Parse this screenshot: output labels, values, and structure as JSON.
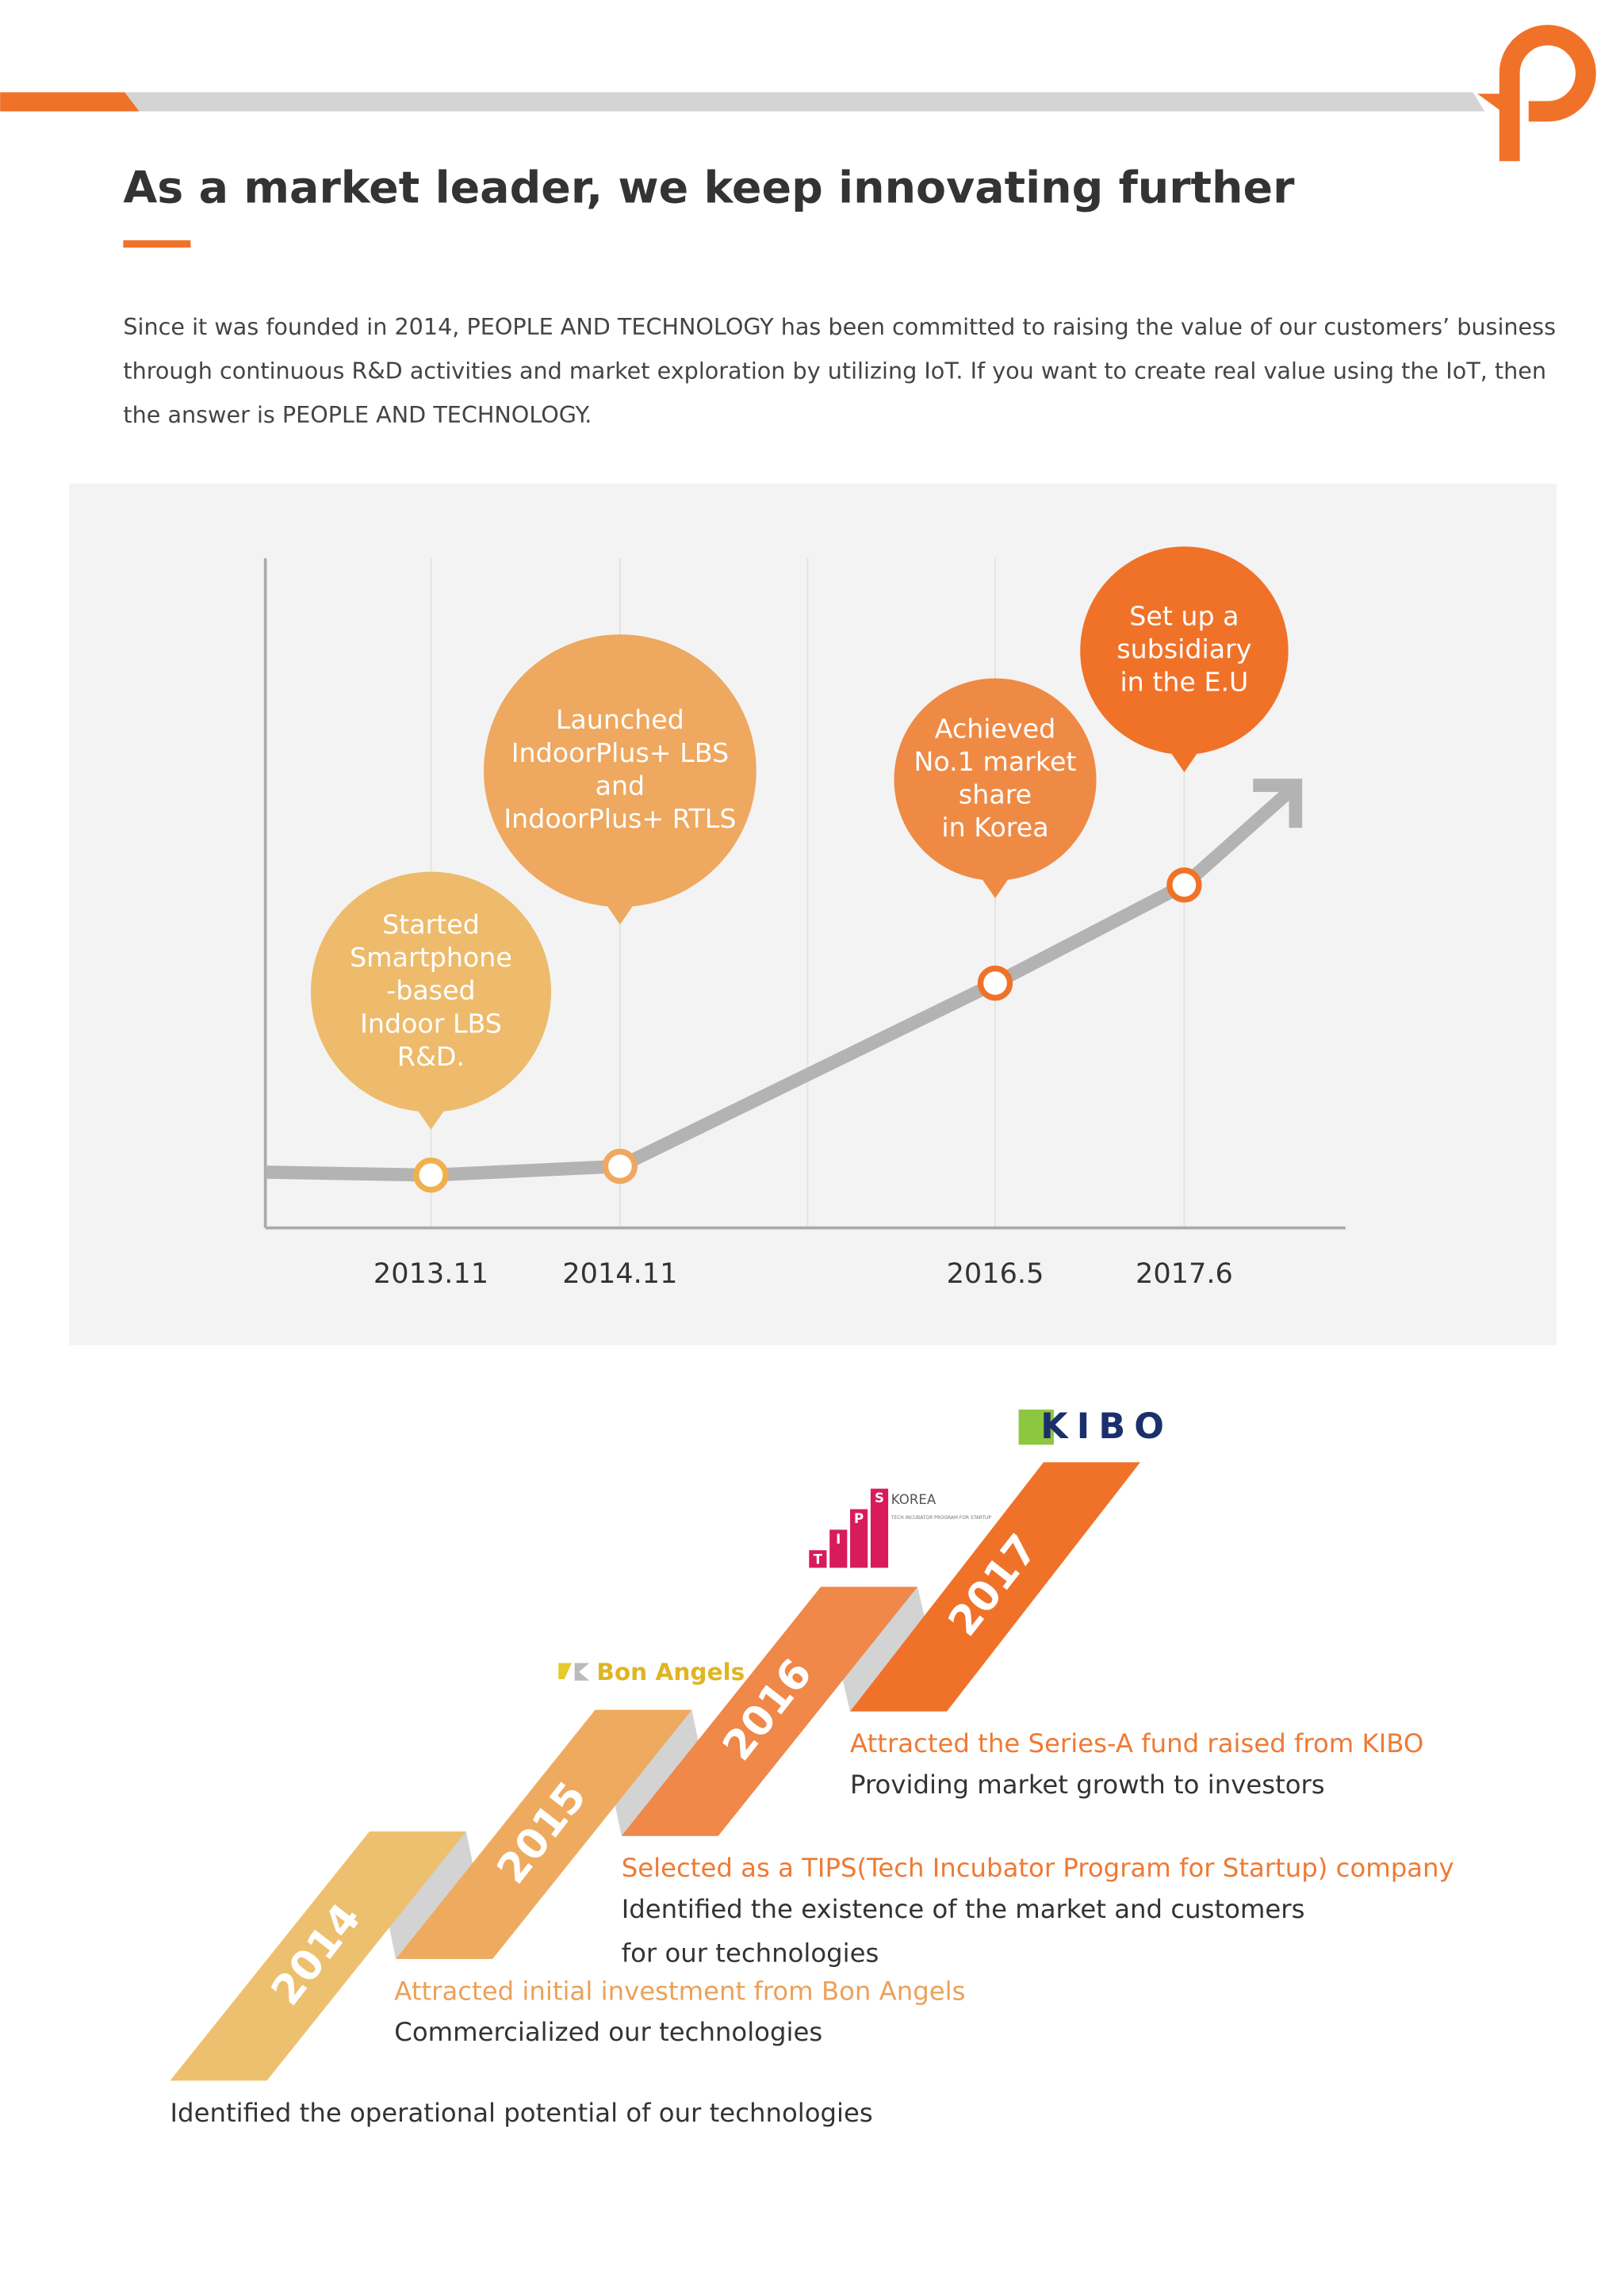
{
  "header": {
    "title": "As a market leader, we keep innovating further"
  },
  "intro": {
    "lines": [
      " Since it was founded in 2014, PEOPLE AND TECHNOLOGY has been committed to raising the value of our customers’ business",
      "through continuous R&D activities and market exploration by utilizing IoT. If you want to create real value using the IoT, then",
      "the answer is PEOPLE AND TECHNOLOGY."
    ]
  },
  "growth": {
    "milestones": [
      {
        "date": "2013.11",
        "lines": [
          "Started",
          "Smartphone",
          "-based",
          "Indoor LBS",
          "R&D."
        ]
      },
      {
        "date": "2014.11",
        "lines": [
          "Launched",
          "IndoorPlus+ LBS",
          "and",
          "IndoorPlus+ RTLS"
        ]
      },
      {
        "date": "2016.5",
        "lines": [
          "Achieved",
          "No.1 market",
          "share",
          "in Korea"
        ]
      },
      {
        "date": "2017.6",
        "lines": [
          "Set up a",
          "subsidiary",
          "in the E.U"
        ]
      }
    ]
  },
  "steps": [
    {
      "year": "2014",
      "body": [
        "Identified the operational potential of our technologies"
      ]
    },
    {
      "year": "2015",
      "logo": "Bon Angels",
      "headline": "Attracted initial investment from Bon Angels",
      "body": [
        "Commercialized our technologies"
      ]
    },
    {
      "year": "2016",
      "logo": "KOREA",
      "logo_letters": [
        "T",
        "I",
        "P",
        "S"
      ],
      "logo_sub": "TECH INCUBATOR PROGRAM FOR STARTUP",
      "headline": "Selected as a TIPS(Tech Incubator Program for Startup) company",
      "body": [
        "Identified the existence of the market and customers",
        "for our technologies"
      ]
    },
    {
      "year": "2017",
      "logo": "KIBO",
      "headline": "Attracted the Series-A fund raised from KIBO",
      "body": [
        "Providing market growth to investors"
      ]
    }
  ]
}
